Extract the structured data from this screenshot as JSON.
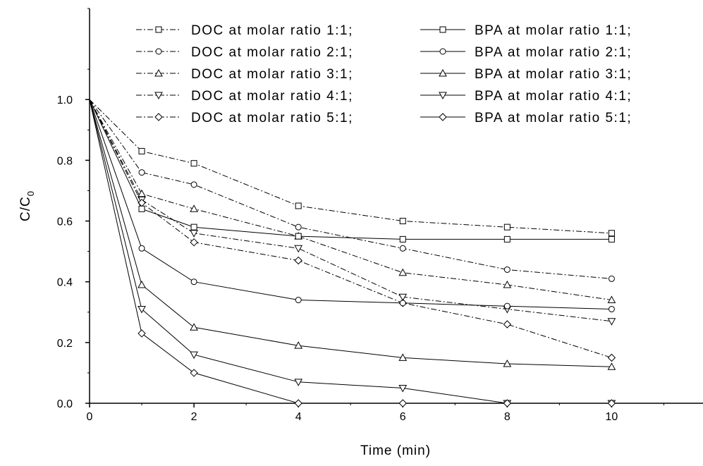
{
  "chart_data": {
    "type": "line",
    "title": "",
    "xlabel": "Time (min)",
    "ylabel": "C/C",
    "ylabel_subscript": "0",
    "xlim": [
      0,
      11.75
    ],
    "ylim": [
      0,
      1.3
    ],
    "x_ticks": [
      "0",
      "2",
      "4",
      "6",
      "8",
      "10"
    ],
    "y_ticks": [
      "0.0",
      "0.2",
      "0.4",
      "0.6",
      "0.8",
      "1.0"
    ],
    "grid": false,
    "legend_position": "top-right",
    "x": [
      0,
      1,
      2,
      4,
      6,
      8,
      10
    ],
    "series": [
      {
        "name": "DOC at molar ratio 1:1;",
        "marker": "square",
        "line": "dashdot",
        "values": [
          1.0,
          0.83,
          0.79,
          0.65,
          0.6,
          0.58,
          0.56
        ]
      },
      {
        "name": "DOC at molar ratio 2:1;",
        "marker": "circle",
        "line": "dashdot",
        "values": [
          1.0,
          0.76,
          0.72,
          0.58,
          0.51,
          0.44,
          0.41
        ]
      },
      {
        "name": "DOC at molar ratio 3:1;",
        "marker": "triangle-up",
        "line": "dashdot",
        "values": [
          1.0,
          0.69,
          0.64,
          0.55,
          0.43,
          0.39,
          0.34
        ]
      },
      {
        "name": "DOC at molar ratio 4:1;",
        "marker": "triangle-down",
        "line": "dashdot",
        "values": [
          1.0,
          0.67,
          0.56,
          0.51,
          0.35,
          0.31,
          0.27
        ]
      },
      {
        "name": "DOC at molar ratio 5:1;",
        "marker": "diamond",
        "line": "dashdot",
        "values": [
          1.0,
          0.66,
          0.53,
          0.47,
          0.33,
          0.26,
          0.15
        ]
      },
      {
        "name": "BPA at molar ratio 1:1;",
        "marker": "square",
        "line": "solid",
        "values": [
          1.0,
          0.64,
          0.58,
          0.55,
          0.54,
          0.54,
          0.54
        ]
      },
      {
        "name": "BPA at molar ratio 2:1;",
        "marker": "circle",
        "line": "solid",
        "values": [
          1.0,
          0.51,
          0.4,
          0.34,
          0.33,
          0.32,
          0.31
        ]
      },
      {
        "name": "BPA at molar ratio 3:1;",
        "marker": "triangle-up",
        "line": "solid",
        "values": [
          1.0,
          0.39,
          0.25,
          0.19,
          0.15,
          0.13,
          0.12
        ]
      },
      {
        "name": "BPA at molar ratio 4:1;",
        "marker": "triangle-down",
        "line": "solid",
        "values": [
          1.0,
          0.31,
          0.16,
          0.07,
          0.05,
          0.0,
          0.0
        ]
      },
      {
        "name": "BPA at molar ratio 5:1;",
        "marker": "diamond",
        "line": "solid",
        "values": [
          1.0,
          0.23,
          0.1,
          0.0,
          0.0,
          0.0,
          0.0
        ]
      }
    ],
    "colors": {
      "line": "#000000",
      "marker_fill": "#ffffff"
    }
  }
}
